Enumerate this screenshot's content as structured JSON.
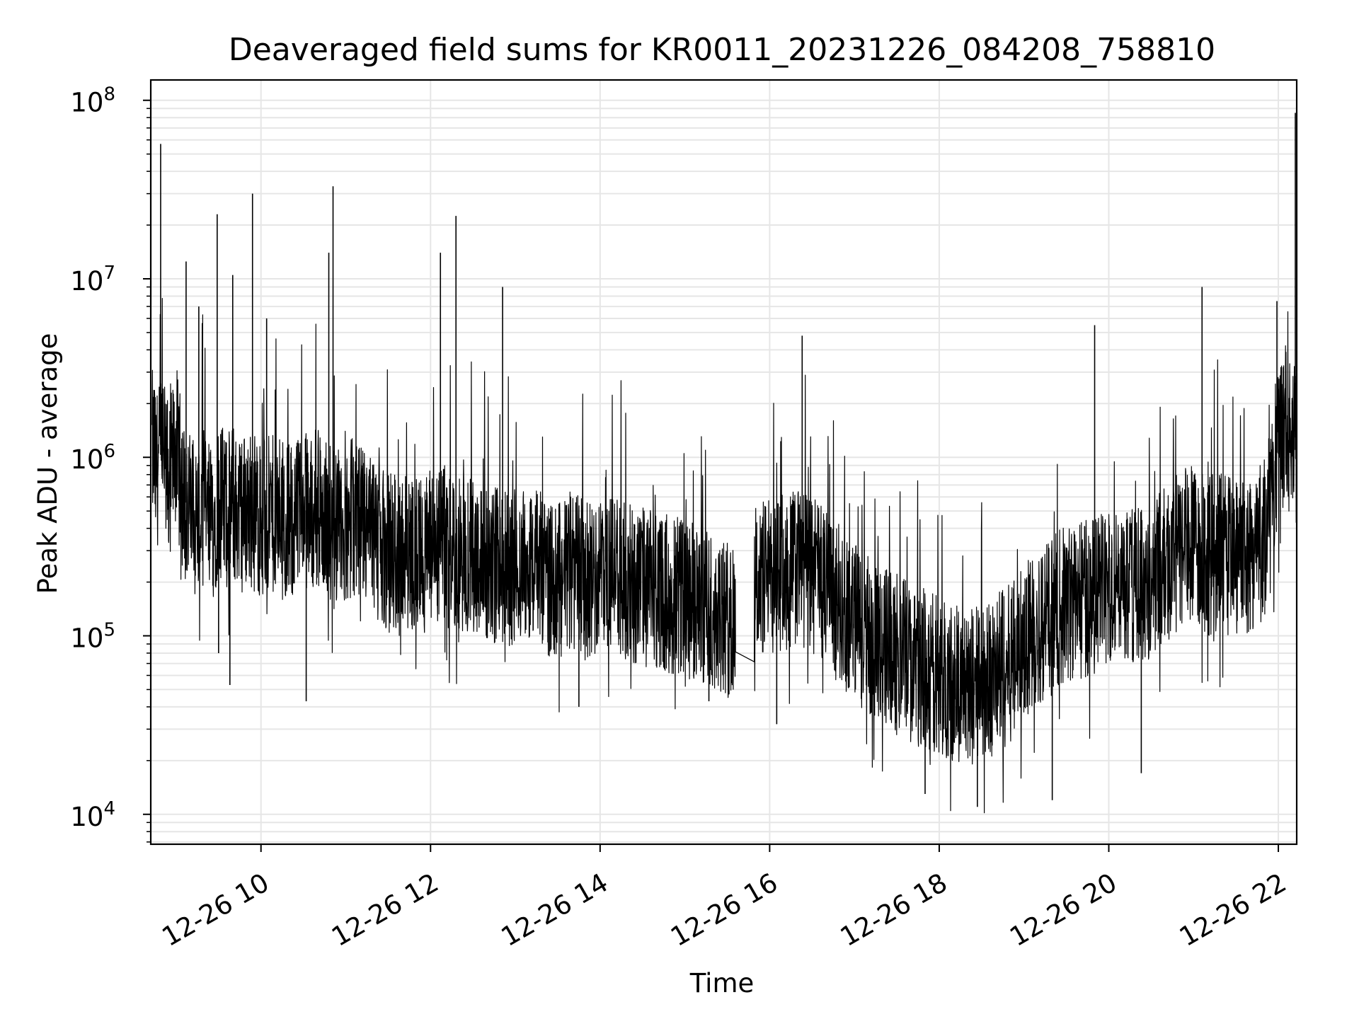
{
  "chart_data": {
    "type": "line",
    "title": "Deaveraged field sums for KR0011_20231226_084208_758810",
    "xlabel": "Time",
    "ylabel": "Peak ADU - average",
    "yscale": "log",
    "ylim": [
      6800,
      130000000
    ],
    "xlim": [
      "2023-12-26 08:42",
      "2023-12-26 22:13"
    ],
    "grid": true,
    "legend": "none",
    "line_color": "#000000",
    "grid_color": "#e6e6e6",
    "x_ticks": [
      {
        "value": "2023-12-26 10:00",
        "label": "12-26 10"
      },
      {
        "value": "2023-12-26 12:00",
        "label": "12-26 12"
      },
      {
        "value": "2023-12-26 14:00",
        "label": "12-26 14"
      },
      {
        "value": "2023-12-26 16:00",
        "label": "12-26 16"
      },
      {
        "value": "2023-12-26 18:00",
        "label": "12-26 18"
      },
      {
        "value": "2023-12-26 20:00",
        "label": "12-26 20"
      },
      {
        "value": "2023-12-26 22:00",
        "label": "12-26 22"
      }
    ],
    "y_ticks": [
      {
        "value": 10000,
        "base": "10",
        "exp": "4"
      },
      {
        "value": 100000,
        "base": "10",
        "exp": "5"
      },
      {
        "value": 1000000,
        "base": "10",
        "exp": "6"
      },
      {
        "value": 10000000,
        "base": "10",
        "exp": "7"
      },
      {
        "value": 100000000,
        "base": "10",
        "exp": "8"
      }
    ],
    "series": [
      {
        "x": [
          "2023-12-26 08:45",
          "2023-12-26 08:50",
          "2023-12-26 08:55",
          "2023-12-26 09:00",
          "2023-12-26 09:05",
          "2023-12-26 09:10",
          "2023-12-26 09:15",
          "2023-12-26 09:20",
          "2023-12-26 09:25",
          "2023-12-26 09:30",
          "2023-12-26 09:35",
          "2023-12-26 09:40",
          "2023-12-26 09:45",
          "2023-12-26 09:50",
          "2023-12-26 09:55",
          "2023-12-26 10:00",
          "2023-12-26 10:10",
          "2023-12-26 10:20",
          "2023-12-26 10:30",
          "2023-12-26 10:40",
          "2023-12-26 10:50",
          "2023-12-26 11:00",
          "2023-12-26 11:10",
          "2023-12-26 11:20",
          "2023-12-26 11:30",
          "2023-12-26 11:40",
          "2023-12-26 11:50",
          "2023-12-26 12:00",
          "2023-12-26 12:10",
          "2023-12-26 12:20",
          "2023-12-26 12:30",
          "2023-12-26 12:40",
          "2023-12-26 12:50",
          "2023-12-26 13:00",
          "2023-12-26 13:10",
          "2023-12-26 13:20",
          "2023-12-26 13:30",
          "2023-12-26 13:40",
          "2023-12-26 13:50",
          "2023-12-26 14:00",
          "2023-12-26 14:10",
          "2023-12-26 14:20",
          "2023-12-26 14:30",
          "2023-12-26 14:40",
          "2023-12-26 14:50",
          "2023-12-26 15:00",
          "2023-12-26 15:10",
          "2023-12-26 15:20",
          "2023-12-26 15:30",
          "2023-12-26 15:35",
          "2023-12-26 15:50",
          "2023-12-26 16:00",
          "2023-12-26 16:10",
          "2023-12-26 16:20",
          "2023-12-26 16:30",
          "2023-12-26 16:40",
          "2023-12-26 16:50",
          "2023-12-26 17:00",
          "2023-12-26 17:10",
          "2023-12-26 17:20",
          "2023-12-26 17:30",
          "2023-12-26 17:40",
          "2023-12-26 17:50",
          "2023-12-26 18:00",
          "2023-12-26 18:10",
          "2023-12-26 18:20",
          "2023-12-26 18:30",
          "2023-12-26 18:40",
          "2023-12-26 18:50",
          "2023-12-26 19:00",
          "2023-12-26 19:10",
          "2023-12-26 19:20",
          "2023-12-26 19:30",
          "2023-12-26 19:40",
          "2023-12-26 19:50",
          "2023-12-26 20:00",
          "2023-12-26 20:10",
          "2023-12-26 20:20",
          "2023-12-26 20:30",
          "2023-12-26 20:40",
          "2023-12-26 20:50",
          "2023-12-26 21:00",
          "2023-12-26 21:10",
          "2023-12-26 21:20",
          "2023-12-26 21:30",
          "2023-12-26 21:40",
          "2023-12-26 21:50",
          "2023-12-26 22:00",
          "2023-12-26 22:05",
          "2023-12-26 22:10",
          "2023-12-26 22:12"
        ],
        "values": [
          800000,
          1100000,
          700000,
          1200000,
          600000,
          500000,
          450000,
          550000,
          400000,
          600000,
          500000,
          550000,
          480000,
          520000,
          500000,
          450000,
          480000,
          420000,
          500000,
          520000,
          400000,
          380000,
          420000,
          350000,
          300000,
          320000,
          280000,
          300000,
          320000,
          280000,
          300000,
          260000,
          250000,
          240000,
          260000,
          220000,
          210000,
          230000,
          200000,
          220000,
          240000,
          200000,
          190000,
          180000,
          170000,
          160000,
          150000,
          140000,
          120000,
          110000,
          200000,
          210000,
          230000,
          250000,
          220000,
          180000,
          150000,
          120000,
          100000,
          90000,
          80000,
          70000,
          65000,
          60000,
          55000,
          50000,
          55000,
          60000,
          70000,
          90000,
          110000,
          130000,
          150000,
          160000,
          170000,
          180000,
          190000,
          200000,
          210000,
          250000,
          300000,
          320000,
          280000,
          300000,
          260000,
          280000,
          350000,
          1200000,
          1500000,
          1300000,
          1100000
        ],
        "spikes": [
          {
            "x": "2023-12-26 08:49",
            "y": 57000000
          },
          {
            "x": "2023-12-26 09:07",
            "y": 12500000
          },
          {
            "x": "2023-12-26 09:16",
            "y": 7000000
          },
          {
            "x": "2023-12-26 09:29",
            "y": 23000000
          },
          {
            "x": "2023-12-26 09:40",
            "y": 10500000
          },
          {
            "x": "2023-12-26 09:54",
            "y": 30000000
          },
          {
            "x": "2023-12-26 10:04",
            "y": 6000000
          },
          {
            "x": "2023-12-26 10:48",
            "y": 14000000
          },
          {
            "x": "2023-12-26 10:51",
            "y": 33000000
          },
          {
            "x": "2023-12-26 12:07",
            "y": 14000000
          },
          {
            "x": "2023-12-26 12:18",
            "y": 22500000
          },
          {
            "x": "2023-12-26 12:51",
            "y": 9000000
          },
          {
            "x": "2023-12-26 16:23",
            "y": 4800000
          },
          {
            "x": "2023-12-26 19:50",
            "y": 5500000
          },
          {
            "x": "2023-12-26 21:06",
            "y": 9000000
          },
          {
            "x": "2023-12-26 21:59",
            "y": 7500000
          },
          {
            "x": "2023-12-26 22:12",
            "y": 85000000
          }
        ],
        "dips": [
          {
            "x": "2023-12-26 09:30",
            "y": 80000
          },
          {
            "x": "2023-12-26 09:38",
            "y": 53000
          },
          {
            "x": "2023-12-26 10:32",
            "y": 43000
          },
          {
            "x": "2023-12-26 13:45",
            "y": 40000
          },
          {
            "x": "2023-12-26 15:17",
            "y": 43000
          },
          {
            "x": "2023-12-26 16:05",
            "y": 32000
          },
          {
            "x": "2023-12-26 17:50",
            "y": 13000
          },
          {
            "x": "2023-12-26 18:27",
            "y": 11000
          },
          {
            "x": "2023-12-26 19:20",
            "y": 12000
          },
          {
            "x": "2023-12-26 20:23",
            "y": 17000
          }
        ]
      }
    ]
  }
}
